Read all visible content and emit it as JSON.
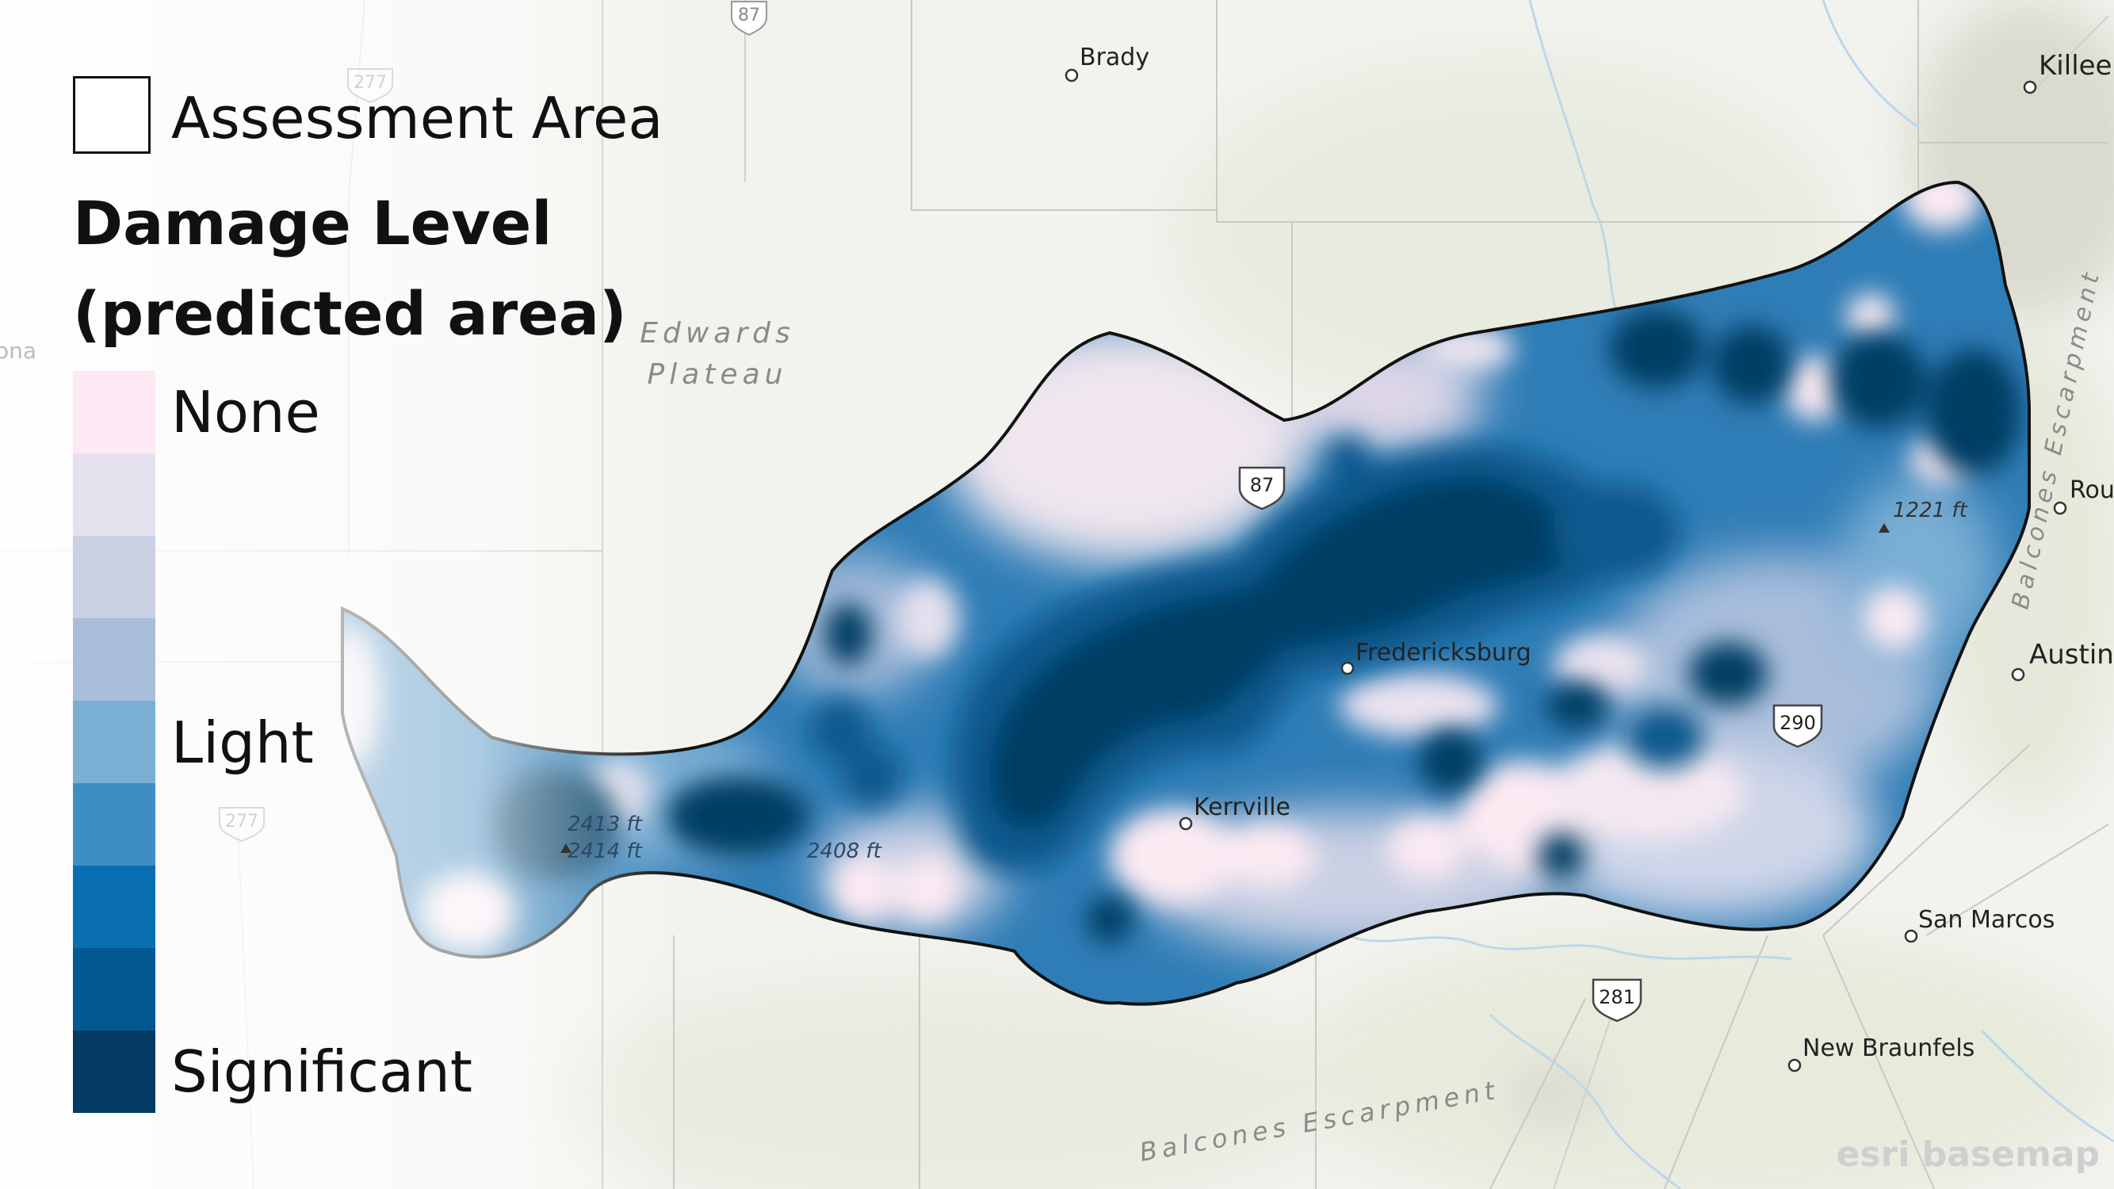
{
  "legend": {
    "assessment_label": "Assessment Area",
    "title_line1": "Damage Level",
    "title_line2": "(predicted area)",
    "labels": {
      "none": "None",
      "light": "Light",
      "significant": "Significant"
    },
    "ramp": [
      "#fde9f3",
      "#e5e1ee",
      "#cad0e4",
      "#a8bedb",
      "#7aaed4",
      "#3e8ec2",
      "#0a6fb2",
      "#045892",
      "#053c63"
    ]
  },
  "places": {
    "brady": "Brady",
    "killeen": "Killeen",
    "fredericksburg": "Fredericksburg",
    "kerrville": "Kerrville",
    "austin": "Austin",
    "round": "Rou",
    "san_marcos": "San Marcos",
    "new_braunfels": "New Braunfels",
    "sonora": "ona"
  },
  "regions": {
    "edwards1": "Edwards",
    "edwards2": "Plateau",
    "balcones_bottom": "Balcones Escarpment",
    "balcones_right": "Balcones Escarpment"
  },
  "shields": {
    "us87_top": "87",
    "us277_top": "277",
    "us87_mid": "87",
    "us277_left": "277",
    "us290": "290",
    "us281": "281"
  },
  "elevations": {
    "e1": "1221 ft",
    "e2": "2413 ft",
    "e3": "2414 ft",
    "e4": "2408 ft"
  },
  "credit": "esri basemap"
}
